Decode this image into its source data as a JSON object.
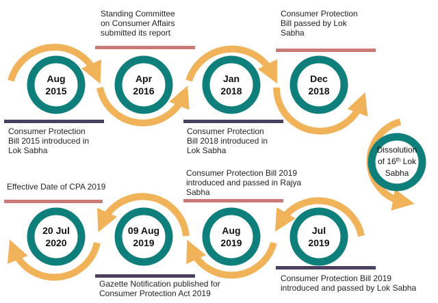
{
  "colors": {
    "ring": "#0e7f7b",
    "arrow": "#f0b35a",
    "bar_dark": "#4a3f5f",
    "bar_salmon": "#c97a77"
  },
  "top_row": [
    {
      "date": [
        "Aug",
        "2015"
      ],
      "label": [
        "Consumer Protection",
        "Bill 2015 introduced in",
        "Lok Sabha"
      ]
    },
    {
      "date": [
        "Apr",
        "2016"
      ],
      "label": [
        "Standing Committee",
        "on Consumer Affairs",
        "submitted its report"
      ]
    },
    {
      "date": [
        "Jan",
        "2018"
      ],
      "label": [
        "Consumer Protection",
        "Bill 2018 introduced in",
        "Lok Sabha"
      ]
    },
    {
      "date": [
        "Dec",
        "2018"
      ],
      "label": [
        "Consumer Protection",
        "Bill passed by Lok",
        "Sabha"
      ]
    }
  ],
  "dissolution": {
    "line1": "Dissolution",
    "line2a": "of 16",
    "sup": "th",
    "line2b": " Lok",
    "line3": "Sabha"
  },
  "bottom_row": [
    {
      "date": [
        "20 Jul",
        "2020"
      ],
      "label": [
        "Effective Date of CPA 2019"
      ]
    },
    {
      "date": [
        "09 Aug",
        "2019"
      ],
      "label": [
        "Gazette Notification published for",
        "Consumer Protection Act 2019"
      ]
    },
    {
      "date": [
        "Aug",
        "2019"
      ],
      "label": [
        "Consumer Protection Bill 2019",
        "introduced and passed in Rajya",
        "Sabha"
      ]
    },
    {
      "date": [
        "Jul",
        "2019"
      ],
      "label": [
        "Consumer Protection Bill 2019",
        "introduced and passed by Lok Sabha"
      ]
    }
  ]
}
